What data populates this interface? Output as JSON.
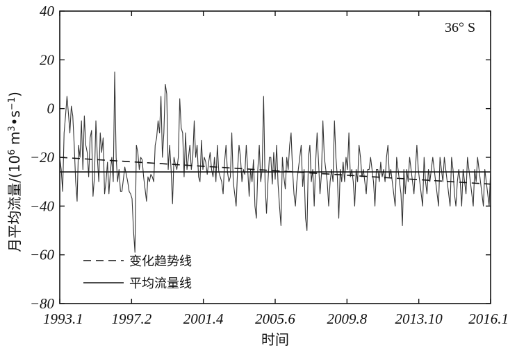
{
  "chart_data": {
    "type": "line",
    "ylabel_main": "月平均流量/(10",
    "ylabel_exp1": "6",
    "ylabel_mid": " m",
    "ylabel_exp2": "3",
    "ylabel_dot": "•s",
    "ylabel_exp3": "−1",
    "ylabel_end": ")",
    "xlabel": "时间",
    "annotation": "36° S",
    "ylim": [
      -80,
      40
    ],
    "yticks": [
      -80,
      -60,
      -40,
      -20,
      0,
      20,
      40
    ],
    "xtick_labels": [
      "1993.1",
      "1997.2",
      "2001.4",
      "2005.6",
      "2009.8",
      "2013.10",
      "2016.1"
    ],
    "legend": {
      "position": "lower-left",
      "trend_label": "变化趋势线",
      "mean_label": "平均流量线"
    },
    "mean_value": -26,
    "trend": {
      "start": -20,
      "end": -31
    },
    "series": {
      "values": [
        -20,
        -25,
        -34,
        -10,
        -3,
        5,
        -2,
        -10,
        1,
        -3,
        -15,
        -30,
        -38,
        -15,
        -20,
        -5,
        -25,
        -3,
        -15,
        -18,
        -28,
        -12,
        -9,
        -36,
        -28,
        -5,
        -20,
        -30,
        -10,
        -18,
        -12,
        -35,
        -30,
        -22,
        -35,
        -26,
        -20,
        -30,
        15,
        -20,
        -30,
        -25,
        -34,
        -34,
        -29,
        -24,
        -27,
        -30,
        -34,
        -35,
        -37,
        -50,
        -59,
        -15,
        -18,
        -25,
        -20,
        -21,
        -28,
        -33,
        -38,
        -28,
        -30,
        -27,
        -28,
        -30,
        -15,
        -12,
        -5,
        -10,
        5,
        -20,
        -10,
        10,
        6,
        -25,
        -15,
        -25,
        -39,
        -20,
        -23,
        -25,
        -20,
        4,
        -8,
        -10,
        -28,
        -10,
        -25,
        -20,
        -15,
        -25,
        -20,
        -5,
        -20,
        -15,
        -28,
        -30,
        -13,
        -25,
        -20,
        -22,
        -27,
        -22,
        -18,
        -25,
        -28,
        -20,
        -30,
        -15,
        -26,
        -28,
        -30,
        -35,
        -22,
        -15,
        -26,
        -30,
        -28,
        -10,
        -30,
        -35,
        -40,
        -25,
        -15,
        -20,
        -30,
        -25,
        -27,
        -15,
        -25,
        -36,
        -25,
        -30,
        -21,
        -40,
        -45,
        -25,
        -15,
        -30,
        -25,
        5,
        -30,
        -43,
        -30,
        -20,
        -20,
        -31,
        -18,
        -29,
        -15,
        -31,
        -40,
        -48,
        -20,
        -28,
        -33,
        -20,
        -25,
        -15,
        -10,
        -25,
        -35,
        -40,
        -30,
        -25,
        -20,
        -15,
        -32,
        -25,
        -45,
        -50,
        -20,
        -15,
        -30,
        -25,
        -40,
        -22,
        -10,
        -22,
        -35,
        -27,
        -5,
        -20,
        -25,
        -30,
        -40,
        -30,
        -25,
        -30,
        -5,
        -20,
        -28,
        -45,
        -25,
        -30,
        -22,
        -30,
        -20,
        -25,
        -10,
        -28,
        -25,
        -30,
        -40,
        -25,
        -30,
        -15,
        -20,
        -28,
        -25,
        -30,
        -35,
        -25,
        -25,
        -20,
        -25,
        -30,
        -40,
        -25,
        -25,
        -30,
        -22,
        -28,
        -25,
        -30,
        -20,
        -15,
        -28,
        -25,
        -30,
        -35,
        -40,
        -20,
        -25,
        -30,
        -35,
        -48,
        -25,
        -35,
        -25,
        -30,
        -20,
        -25,
        -30,
        -35,
        -25,
        -15,
        -25,
        -30,
        -35,
        -40,
        -20,
        -30,
        -35,
        -25,
        -30,
        -25,
        -20,
        -25,
        -30,
        -35,
        -40,
        -20,
        -25,
        -30,
        -20,
        -25,
        -30,
        -35,
        -40,
        -20,
        -25,
        -35,
        -40,
        -30,
        -25,
        -30,
        -40,
        -25,
        -30,
        -35,
        -20,
        -25,
        -30,
        -35,
        -40,
        -25,
        -30,
        -20,
        -25,
        -30,
        -35,
        -40,
        -25,
        -30,
        -35,
        -40,
        -25
      ]
    }
  }
}
